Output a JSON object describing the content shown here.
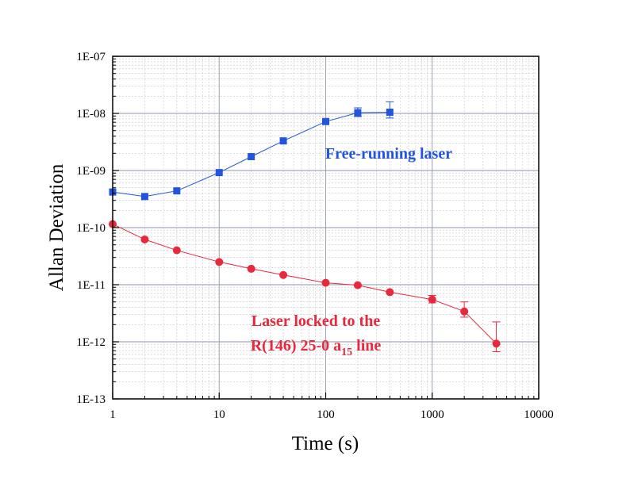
{
  "chart_data": {
    "type": "scatter",
    "title": "",
    "xlabel": "Time (s)",
    "ylabel": "Allan Deviation",
    "xscale": "log",
    "yscale": "log",
    "xlim": [
      1,
      10000
    ],
    "ylim": [
      1e-13,
      1e-07
    ],
    "grid": true,
    "x_tick_labels": [
      "1",
      "10",
      "100",
      "1000",
      "10000"
    ],
    "y_tick_labels": [
      "1E-13",
      "1E-12",
      "1E-11",
      "1E-10",
      "1E-09",
      "1E-08",
      "1E-07"
    ],
    "series": [
      {
        "name": "Free-running laser",
        "color": "#2255dd",
        "marker": "square",
        "x": [
          1,
          2,
          4,
          10,
          20,
          40,
          100,
          200,
          400
        ],
        "y": [
          4.2e-10,
          3.5e-10,
          4.4e-10,
          9.2e-10,
          1.75e-09,
          3.3e-09,
          7.2e-09,
          1.03e-08,
          1.05e-08
        ],
        "err_up": [
          0,
          0,
          0,
          0,
          0,
          0,
          0,
          2.2e-09,
          5.5e-09
        ],
        "err_down": [
          0,
          0,
          0,
          0,
          0,
          0,
          0,
          1.5e-09,
          2.2e-09
        ]
      },
      {
        "name": "Laser locked to the R(146) 25-0 a15 line",
        "color": "#e8283c",
        "marker": "circle",
        "x": [
          1,
          2,
          4,
          10,
          20,
          40,
          100,
          200,
          400,
          1000,
          2000,
          4000
        ],
        "y": [
          1.15e-10,
          6.2e-11,
          4e-11,
          2.5e-11,
          1.9e-11,
          1.48e-11,
          1.08e-11,
          9.8e-12,
          7.4e-12,
          5.5e-12,
          3.4e-12,
          9.3e-13
        ],
        "err_up": [
          0,
          0,
          0,
          0,
          0,
          0,
          0,
          0,
          0,
          1e-12,
          1.6e-12,
          1.3e-12
        ],
        "err_down": [
          0,
          0,
          0,
          0,
          0,
          0,
          0,
          0,
          0,
          7e-13,
          7e-13,
          2.6e-13
        ]
      }
    ],
    "annotations": [
      {
        "series": 0,
        "lines": [
          "Free-running laser"
        ],
        "color": "#2255dd"
      },
      {
        "series": 1,
        "lines": [
          "Laser locked to the",
          "R(146) 25-0 a",
          "15",
          " line"
        ],
        "color": "#e8283c"
      }
    ]
  }
}
